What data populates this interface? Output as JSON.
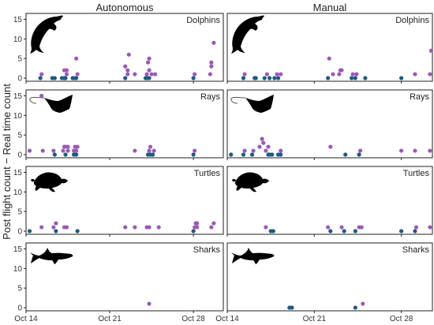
{
  "chart_data": {
    "type": "scatter",
    "ylabel": "Post flight count − Real time count",
    "columns": [
      "Autonomous",
      "Manual"
    ],
    "rows": [
      "Dolphins",
      "Rays",
      "Turtles",
      "Sharks"
    ],
    "x_ticks": [
      {
        "label": "Oct 14",
        "day": 14
      },
      {
        "label": "Oct 21",
        "day": 21
      },
      {
        "label": "Oct 28",
        "day": 28
      }
    ],
    "xlim": [
      14,
      30.5
    ],
    "y_ticks": [
      0,
      5,
      10,
      15
    ],
    "ylim": [
      -0.8,
      16.5
    ],
    "grid": false,
    "colors": {
      "zero": "#1f5a80",
      "positive": "#9b59b6"
    },
    "icons": {
      "Dolphins": "dolphin-icon",
      "Rays": "ray-icon",
      "Turtles": "turtle-icon",
      "Sharks": "shark-icon"
    },
    "panels": [
      {
        "column": "Autonomous",
        "row": "Dolphins",
        "points": [
          [
            15.2,
            0
          ],
          [
            15.3,
            1
          ],
          [
            16.2,
            0
          ],
          [
            16.4,
            0
          ],
          [
            17.0,
            0
          ],
          [
            17.2,
            0
          ],
          [
            17.3,
            0
          ],
          [
            17.2,
            2
          ],
          [
            17.4,
            2
          ],
          [
            17.4,
            1
          ],
          [
            17.9,
            0
          ],
          [
            18.1,
            0
          ],
          [
            18.2,
            0
          ],
          [
            18.3,
            1
          ],
          [
            18.2,
            5
          ],
          [
            22.3,
            0
          ],
          [
            22.5,
            1
          ],
          [
            22.3,
            3
          ],
          [
            22.5,
            2
          ],
          [
            22.6,
            6
          ],
          [
            23.1,
            1
          ],
          [
            24.0,
            0
          ],
          [
            24.1,
            1
          ],
          [
            24.1,
            0
          ],
          [
            24.3,
            0
          ],
          [
            24.2,
            4
          ],
          [
            24.3,
            5
          ],
          [
            24.3,
            2
          ],
          [
            24.5,
            1
          ],
          [
            24.8,
            1
          ],
          [
            28.0,
            0
          ],
          [
            28.1,
            1
          ],
          [
            29.4,
            1
          ],
          [
            29.5,
            3
          ],
          [
            29.5,
            4
          ],
          [
            29.7,
            9
          ]
        ]
      },
      {
        "column": "Autonomous",
        "row": "Rays",
        "points": [
          [
            14.3,
            1
          ],
          [
            15.3,
            15
          ],
          [
            15.4,
            1
          ],
          [
            16.3,
            1
          ],
          [
            16.4,
            0
          ],
          [
            17.1,
            1
          ],
          [
            17.2,
            2
          ],
          [
            17.3,
            2
          ],
          [
            17.3,
            0
          ],
          [
            17.5,
            2
          ],
          [
            17.5,
            1
          ],
          [
            18.0,
            0
          ],
          [
            18.0,
            1
          ],
          [
            18.2,
            1
          ],
          [
            18.2,
            0
          ],
          [
            18.1,
            2
          ],
          [
            18.3,
            2
          ],
          [
            23.1,
            1
          ],
          [
            24.2,
            0
          ],
          [
            24.3,
            1
          ],
          [
            24.4,
            0
          ],
          [
            24.4,
            2
          ],
          [
            24.6,
            0
          ],
          [
            24.7,
            1
          ],
          [
            28.0,
            0
          ],
          [
            28.1,
            1
          ]
        ]
      },
      {
        "column": "Autonomous",
        "row": "Turtles",
        "points": [
          [
            14.3,
            0
          ],
          [
            15.3,
            1
          ],
          [
            16.3,
            1
          ],
          [
            16.5,
            0
          ],
          [
            16.5,
            2
          ],
          [
            17.2,
            1
          ],
          [
            17.4,
            1
          ],
          [
            18.3,
            0
          ],
          [
            22.3,
            1
          ],
          [
            23.1,
            1
          ],
          [
            24.1,
            1
          ],
          [
            24.3,
            1
          ],
          [
            25.1,
            1
          ],
          [
            28.0,
            0
          ],
          [
            28.1,
            1
          ],
          [
            28.2,
            2
          ],
          [
            28.3,
            2
          ],
          [
            28.3,
            1
          ],
          [
            29.5,
            1
          ],
          [
            29.7,
            2
          ]
        ]
      },
      {
        "column": "Autonomous",
        "row": "Sharks",
        "points": [
          [
            24.3,
            1
          ]
        ]
      },
      {
        "column": "Manual",
        "row": "Dolphins",
        "points": [
          [
            15.3,
            0
          ],
          [
            15.4,
            1
          ],
          [
            16.2,
            0
          ],
          [
            16.3,
            0
          ],
          [
            17.0,
            0
          ],
          [
            17.2,
            1
          ],
          [
            17.4,
            0
          ],
          [
            17.8,
            0
          ],
          [
            18.0,
            1
          ],
          [
            18.1,
            0
          ],
          [
            18.3,
            1
          ],
          [
            22.1,
            0
          ],
          [
            22.2,
            5
          ],
          [
            22.5,
            1
          ],
          [
            23.0,
            1
          ],
          [
            23.1,
            2
          ],
          [
            23.2,
            2
          ],
          [
            24.0,
            0
          ],
          [
            24.1,
            1
          ],
          [
            24.3,
            0
          ],
          [
            24.4,
            1
          ],
          [
            25.1,
            0
          ],
          [
            28.0,
            0
          ],
          [
            29.1,
            1
          ],
          [
            30.3,
            1
          ],
          [
            30.4,
            7
          ]
        ]
      },
      {
        "column": "Manual",
        "row": "Rays",
        "points": [
          [
            14.3,
            0
          ],
          [
            15.3,
            0
          ],
          [
            15.4,
            1
          ],
          [
            16.0,
            0
          ],
          [
            16.1,
            1
          ],
          [
            16.6,
            2
          ],
          [
            16.8,
            4
          ],
          [
            16.9,
            3
          ],
          [
            17.1,
            1
          ],
          [
            17.3,
            2
          ],
          [
            17.3,
            0
          ],
          [
            17.4,
            0
          ],
          [
            17.6,
            0
          ],
          [
            18.1,
            0
          ],
          [
            18.3,
            0
          ],
          [
            18.3,
            1
          ],
          [
            22.3,
            2
          ],
          [
            23.5,
            0
          ],
          [
            24.6,
            0
          ],
          [
            24.7,
            1
          ],
          [
            28.0,
            1
          ],
          [
            29.1,
            1
          ],
          [
            30.3,
            1
          ]
        ]
      },
      {
        "column": "Manual",
        "row": "Turtles",
        "points": [
          [
            17.1,
            1
          ],
          [
            17.5,
            0
          ],
          [
            17.7,
            0
          ],
          [
            22.1,
            1
          ],
          [
            22.3,
            0
          ],
          [
            23.2,
            1
          ],
          [
            23.4,
            0
          ],
          [
            24.3,
            0
          ],
          [
            24.6,
            1
          ],
          [
            24.8,
            1
          ],
          [
            28.0,
            0
          ],
          [
            29.1,
            0
          ],
          [
            29.2,
            1
          ],
          [
            30.3,
            1
          ]
        ]
      },
      {
        "column": "Manual",
        "row": "Sharks",
        "points": [
          [
            19.0,
            0
          ],
          [
            19.2,
            0
          ],
          [
            24.3,
            0
          ],
          [
            24.9,
            1
          ]
        ]
      }
    ]
  }
}
